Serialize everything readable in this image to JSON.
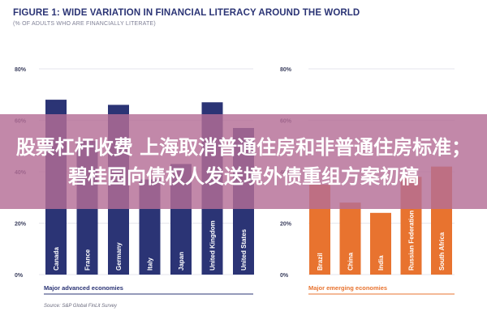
{
  "title": "FIGURE 1: WIDE VARIATION IN FINANCIAL LITERACY AROUND THE WORLD",
  "subtitle": "(% OF ADULTS WHO ARE FINANCIALLY LITERATE)",
  "source": "Source: S&P Global FinLit Survey",
  "overlay_text": "股票杠杆收费 上海取消普通住房和非普通住房标准；碧桂园向债权人发送境外债重组方案初稿",
  "colors": {
    "advanced": "#2b3475",
    "emerging": "#e8732f",
    "title": "#2b3475",
    "overlay": "#b46e96"
  },
  "chart_data": [
    {
      "type": "bar",
      "group_label": "Major advanced economies",
      "categories": [
        "Canada",
        "France",
        "Germany",
        "Italy",
        "Japan",
        "United Kingdom",
        "United States"
      ],
      "values": [
        68,
        52,
        66,
        37,
        43,
        67,
        57
      ],
      "ylim": [
        0,
        80
      ],
      "yticks": [
        "0%",
        "20%",
        "40%",
        "60%",
        "80%"
      ],
      "color": "#2b3475"
    },
    {
      "type": "bar",
      "group_label": "Major emerging economies",
      "categories": [
        "Brazil",
        "China",
        "India",
        "Russian Federation",
        "South Africa"
      ],
      "values": [
        35,
        28,
        24,
        38,
        42
      ],
      "ylim": [
        0,
        80
      ],
      "yticks": [
        "0%",
        "20%",
        "40%",
        "60%",
        "80%"
      ],
      "color": "#e8732f"
    }
  ]
}
